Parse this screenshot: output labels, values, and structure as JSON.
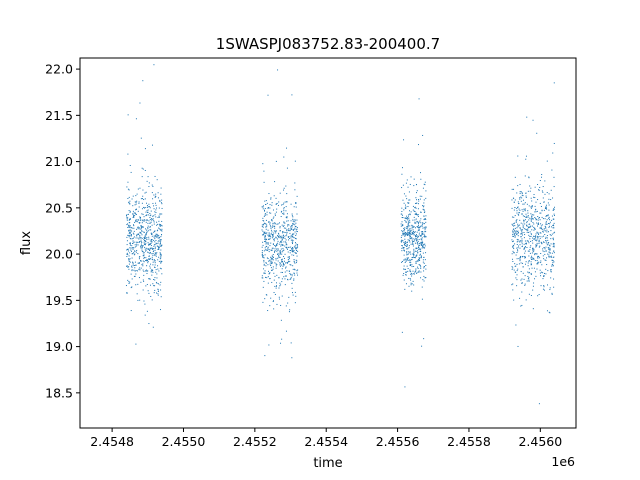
{
  "chart_data": {
    "type": "scatter",
    "title": "1SWASPJ083752.83-200400.7",
    "xlabel": "time",
    "ylabel": "flux",
    "x_offset_label": "1e6",
    "xlim": [
      2.45471,
      2.4561
    ],
    "ylim": [
      18.12,
      22.12
    ],
    "x_ticks": [
      2.4548,
      2.455,
      2.4552,
      2.4554,
      2.4556,
      2.4558,
      2.456
    ],
    "x_tick_labels": [
      "2.4548",
      "2.4550",
      "2.4552",
      "2.4554",
      "2.4556",
      "2.4558",
      "2.4560"
    ],
    "y_ticks": [
      18.5,
      19.0,
      19.5,
      20.0,
      20.5,
      21.0,
      21.5,
      22.0
    ],
    "y_tick_labels": [
      "18.5",
      "19.0",
      "19.5",
      "20.0",
      "20.5",
      "21.0",
      "21.5",
      "22.0"
    ],
    "grid": false,
    "marker_color": "#1f77b4",
    "series": [
      {
        "segments": [
          {
            "x_start": 2.45484,
            "x_end": 2.45494,
            "y_center": 20.15,
            "y_spread": 0.45,
            "points": 700
          },
          {
            "x_start": 2.45522,
            "x_end": 2.45532,
            "y_center": 20.1,
            "y_spread": 0.45,
            "points": 650
          },
          {
            "x_start": 2.45561,
            "x_end": 2.45568,
            "y_center": 20.15,
            "y_spread": 0.4,
            "points": 550
          },
          {
            "x_start": 2.45592,
            "x_end": 2.45604,
            "y_center": 20.2,
            "y_spread": 0.45,
            "points": 700
          }
        ]
      }
    ]
  }
}
